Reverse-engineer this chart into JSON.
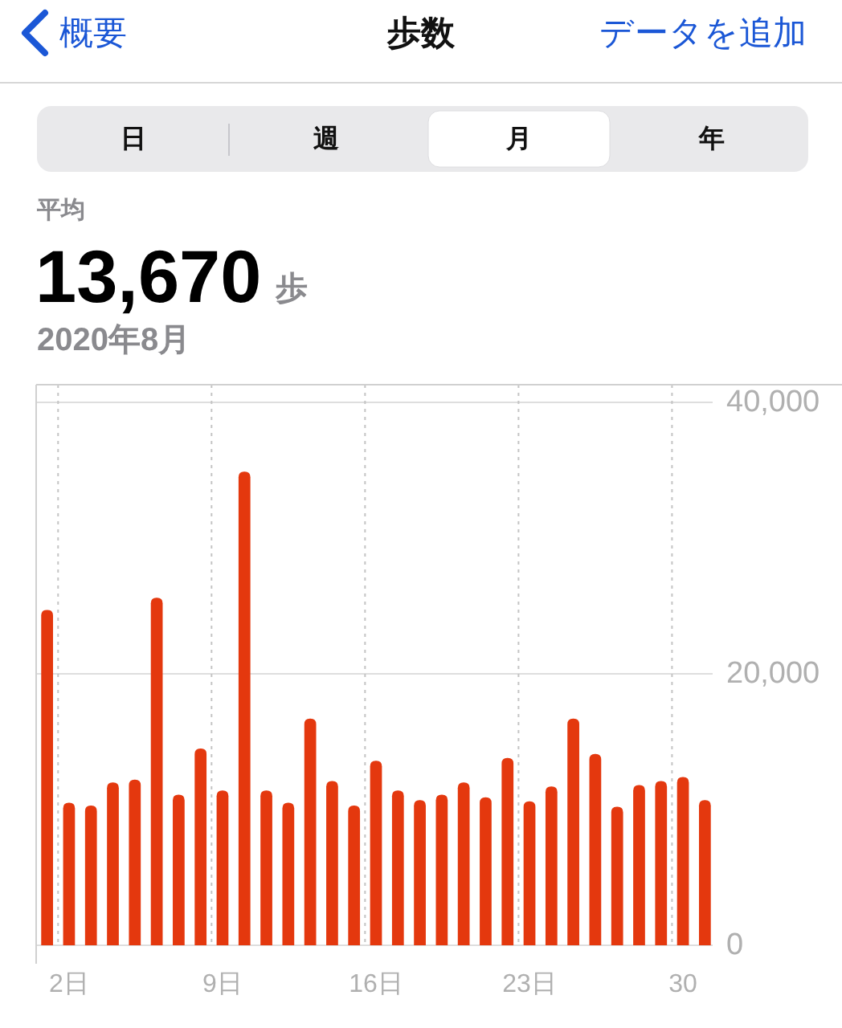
{
  "chart_data": {
    "type": "bar",
    "title": "歩数",
    "subtitle": "2020年8月",
    "annotations": [
      "概要",
      "データを追加",
      "日",
      "週",
      "月",
      "年",
      "平均",
      "13,670",
      "歩"
    ],
    "categories": [
      null,
      "2日",
      null,
      null,
      null,
      null,
      null,
      null,
      "9日",
      null,
      null,
      null,
      null,
      null,
      null,
      "16日",
      null,
      null,
      null,
      null,
      null,
      null,
      "23日",
      null,
      null,
      null,
      null,
      null,
      null,
      "30",
      null
    ],
    "values": [
      24700,
      10500,
      10300,
      12000,
      12200,
      25600,
      11100,
      14500,
      11400,
      34900,
      11400,
      10500,
      16700,
      12100,
      10300,
      13600,
      11400,
      10700,
      11100,
      12000,
      10900,
      13800,
      10600,
      11700,
      16700,
      14100,
      10200,
      11800,
      12100,
      12400,
      10700
    ],
    "color": "#e4380e",
    "ylim": [
      0,
      41300
    ],
    "yticks": [
      0,
      {
        "value": 20000,
        "label": "20,000"
      },
      {
        "value": 40000,
        "label": "40,000"
      }
    ],
    "grid": true
  }
}
